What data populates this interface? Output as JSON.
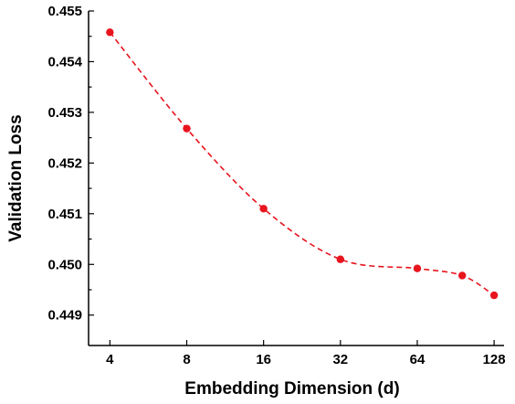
{
  "chart_data": {
    "type": "line",
    "xlabel": "Embedding Dimension (d)",
    "ylabel": "Validation Loss",
    "x_scale": "log2",
    "xlim": [
      3.3,
      140
    ],
    "ylim": [
      0.4484,
      0.455
    ],
    "x_ticks": [
      4,
      8,
      16,
      32,
      64,
      128
    ],
    "x_tick_labels": [
      "4",
      "8",
      "16",
      "32",
      "64",
      "128"
    ],
    "y_ticks": [
      0.449,
      0.45,
      0.451,
      0.452,
      0.453,
      0.454,
      0.455
    ],
    "y_tick_labels": [
      "0.449",
      "0.450",
      "0.451",
      "0.452",
      "0.453",
      "0.454",
      "0.455"
    ],
    "grid": false,
    "series": [
      {
        "color": "#e8141e",
        "line_style": "dashed",
        "marker": "circle",
        "x": [
          4,
          8,
          16,
          32,
          64,
          96,
          128
        ],
        "y": [
          0.45458,
          0.45268,
          0.4511,
          0.4501,
          0.44992,
          0.44978,
          0.44939
        ]
      }
    ]
  }
}
